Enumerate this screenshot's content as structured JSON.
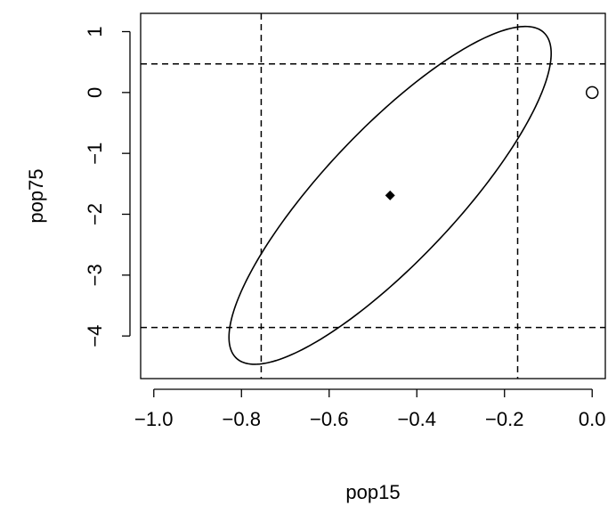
{
  "chart_data": {
    "type": "scatter",
    "title": "",
    "xlabel": "pop15",
    "ylabel": "pop75",
    "xlim": [
      -1.03,
      0.03
    ],
    "ylim": [
      -4.7,
      1.3
    ],
    "grid": false,
    "x_ticks": [
      -1.0,
      -0.8,
      -0.6,
      -0.4,
      -0.2,
      0.0
    ],
    "x_tick_labels": [
      "−1.0",
      "−0.8",
      "−0.6",
      "−0.4",
      "−0.2",
      "0.0"
    ],
    "y_ticks": [
      -4,
      -3,
      -2,
      -1,
      0,
      1
    ],
    "y_tick_labels": [
      "−4",
      "−3",
      "−2",
      "−1",
      "0",
      "1"
    ],
    "points": [
      {
        "marker": "filled-diamond",
        "x": -0.461,
        "y": -1.69
      },
      {
        "marker": "open-circle",
        "x": 0.0,
        "y": 0.0
      }
    ],
    "confidence_ellipse": {
      "center": [
        -0.461,
        -1.69
      ],
      "x_range": [
        -0.83,
        -0.095
      ],
      "y_range": [
        -4.45,
        1.1
      ]
    },
    "reference_lines": {
      "vertical_x": [
        -0.755,
        -0.17
      ],
      "horizontal_y": [
        0.47,
        -3.86
      ],
      "style": "dashed"
    }
  }
}
